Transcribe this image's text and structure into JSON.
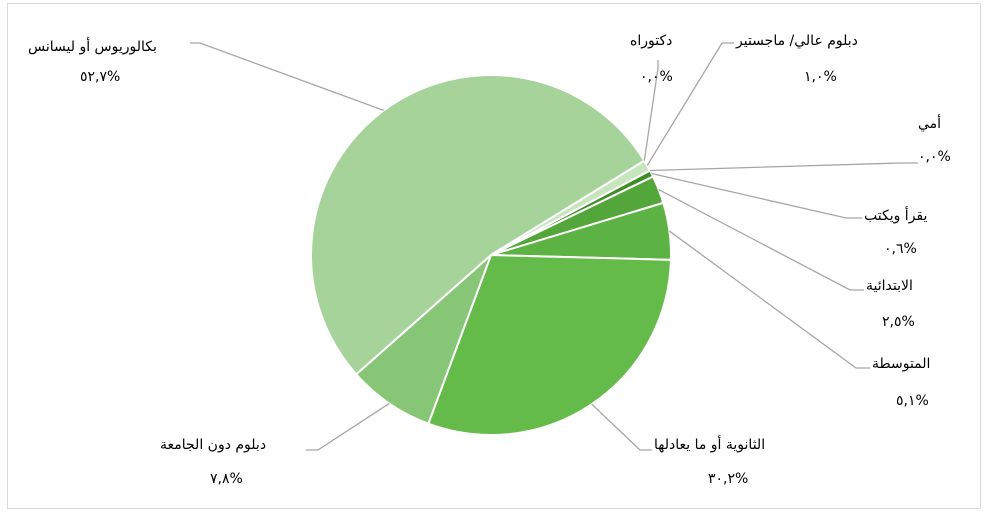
{
  "chart_data": {
    "type": "pie",
    "title": "",
    "slices": [
      {
        "label": "أمي",
        "value_text": "%٠,٠",
        "value": 0.0,
        "color": "#4f9a2c"
      },
      {
        "label": "يقرأ ويكتب",
        "value_text": "%٠,٦",
        "value": 0.6,
        "color": "#3f8d26"
      },
      {
        "label": "الابتدائية",
        "value_text": "%٢,٥",
        "value": 2.5,
        "color": "#53a63a"
      },
      {
        "label": "المتوسطة",
        "value_text": "%٥,١",
        "value": 5.1,
        "color": "#5cb343"
      },
      {
        "label": "الثانوية أو ما يعادلها",
        "value_text": "%٣٠,٢",
        "value": 30.2,
        "color": "#65bb4a"
      },
      {
        "label": "دبلوم دون الجامعة",
        "value_text": "%٧,٨",
        "value": 7.8,
        "color": "#86c676"
      },
      {
        "label": "بكالوريوس أو ليسانس",
        "value_text": "%٥٢,٧",
        "value": 52.7,
        "color": "#a6d39a"
      },
      {
        "label": "دكتوراه",
        "value_text": "%٠,٠",
        "value": 0.0,
        "color": "#bfe0b5"
      },
      {
        "label": "دبلوم عالي/ ماجستير",
        "value_text": "%١,٠",
        "value": 1.0,
        "color": "#c7e5bd"
      }
    ],
    "legend": "none",
    "start_angle_deg": 62
  }
}
